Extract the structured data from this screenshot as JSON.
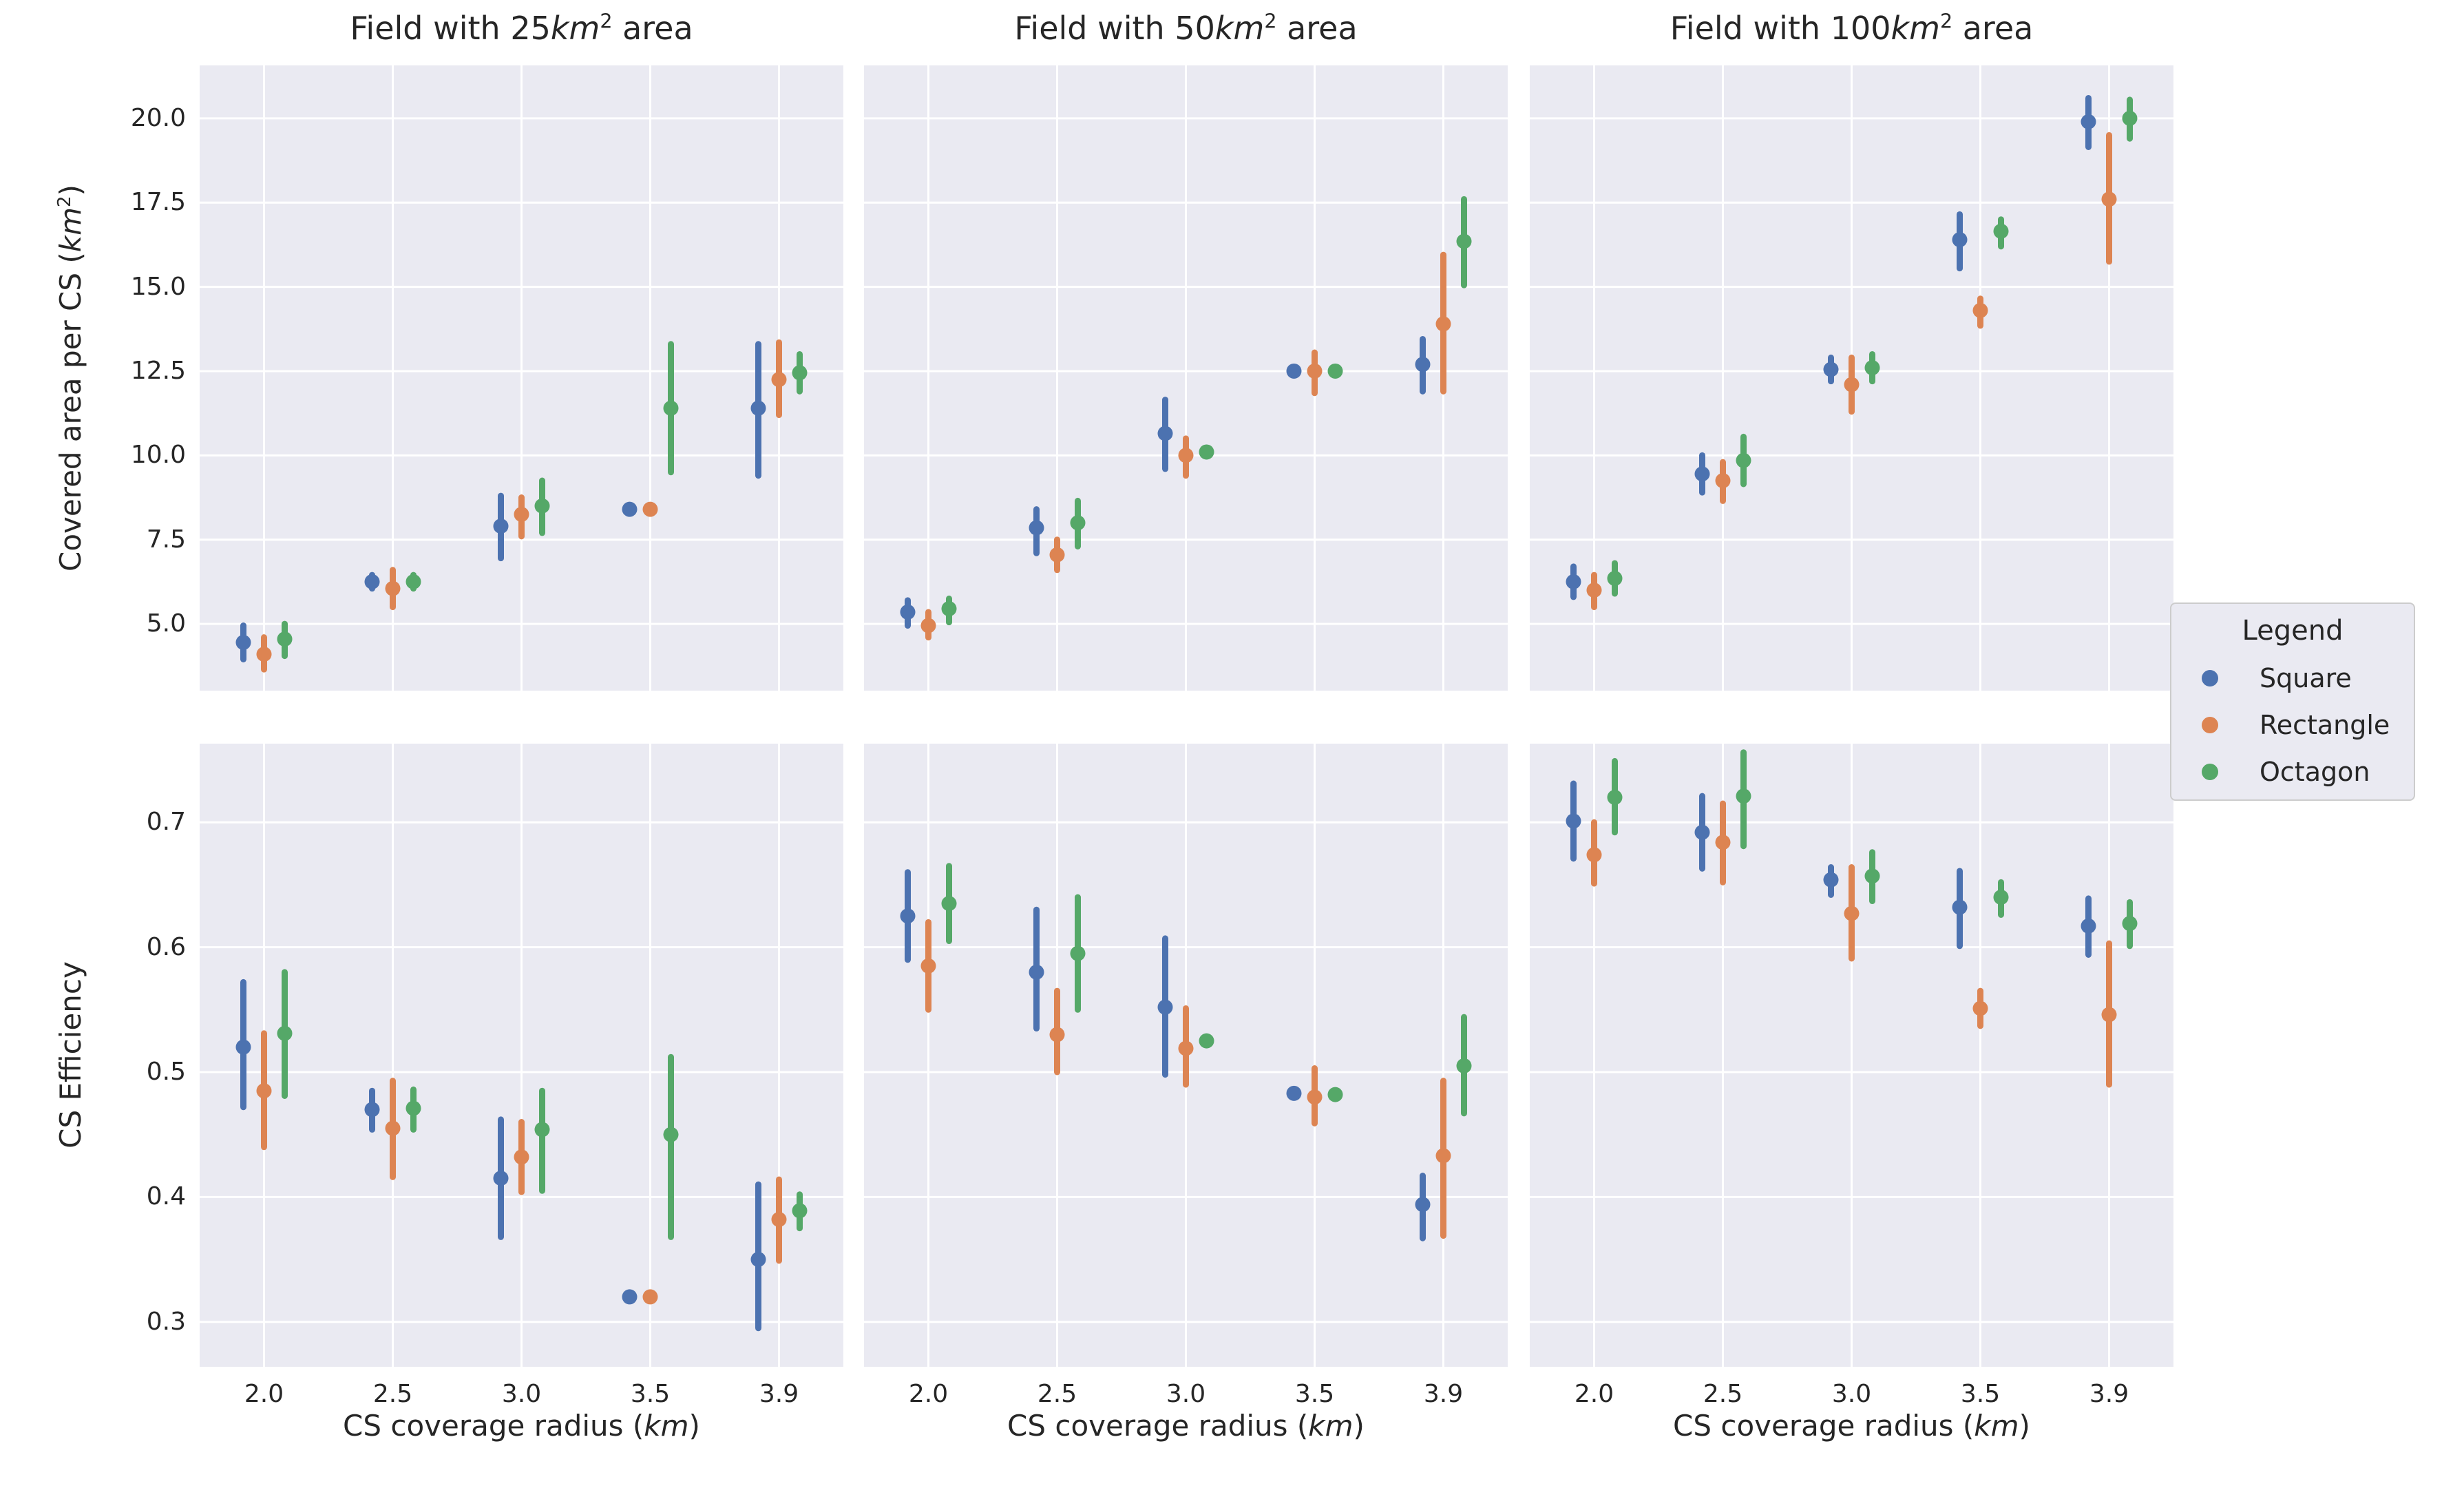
{
  "figure": {
    "background": "#ffffff",
    "axes_background": "#eaeaf2",
    "grid_color": "#ffffff",
    "text_color": "#262626"
  },
  "legend": {
    "title": "Legend",
    "entries": [
      {
        "label": "Square",
        "color": "#4c72b0"
      },
      {
        "label": "Rectangle",
        "color": "#dd8452"
      },
      {
        "label": "Octagon",
        "color": "#55a868"
      }
    ]
  },
  "chart_data": {
    "type": "scatter",
    "subtype": "pointplot-with-error-bars",
    "x_categories": [
      "2.0",
      "2.5",
      "3.0",
      "3.5",
      "3.9"
    ],
    "xlabel": {
      "prefix": "CS coverage radius (",
      "italic": "km",
      "suffix": ")"
    },
    "series_names": [
      "Square",
      "Rectangle",
      "Octagon"
    ],
    "series_colors": [
      "#4c72b0",
      "#dd8452",
      "#55a868"
    ],
    "grid": true,
    "legend_position": "right",
    "rows": [
      {
        "name": "covered-area",
        "ylabel": {
          "prefix": "Covered area per CS (",
          "italic": "km",
          "sup": "2",
          "suffix": ")"
        },
        "yticks": [
          "20.0",
          "17.5",
          "15.0",
          "12.5",
          "10.0",
          "7.5",
          "5.0"
        ],
        "ylim": [
          3.02,
          21.57
        ],
        "plots": [
          {
            "title": {
              "prefix": "Field with 25",
              "italic": "km",
              "sup": "2",
              "suffix": " area"
            },
            "series": [
              {
                "name": "Square",
                "values": [
                  4.45,
                  6.25,
                  7.9,
                  8.4,
                  11.4
                ],
                "err_lo": [
                  3.95,
                  6.05,
                  6.95,
                  8.4,
                  9.4
                ],
                "err_hi": [
                  4.95,
                  6.45,
                  8.8,
                  8.4,
                  13.3
                ]
              },
              {
                "name": "Rectangle",
                "values": [
                  4.1,
                  6.05,
                  8.25,
                  8.4,
                  12.25
                ],
                "err_lo": [
                  3.65,
                  5.5,
                  7.6,
                  8.4,
                  11.2
                ],
                "err_hi": [
                  4.6,
                  6.6,
                  8.75,
                  8.4,
                  13.35
                ]
              },
              {
                "name": "Octagon",
                "values": [
                  4.55,
                  6.25,
                  8.5,
                  11.4,
                  12.45
                ],
                "err_lo": [
                  4.05,
                  6.05,
                  7.7,
                  9.5,
                  11.9
                ],
                "err_hi": [
                  5.0,
                  6.45,
                  9.25,
                  13.3,
                  13.0
                ]
              }
            ]
          },
          {
            "title": {
              "prefix": "Field with 50",
              "italic": "km",
              "sup": "2",
              "suffix": " area"
            },
            "series": [
              {
                "name": "Square",
                "values": [
                  5.35,
                  7.85,
                  10.65,
                  12.5,
                  12.7
                ],
                "err_lo": [
                  4.95,
                  7.1,
                  9.6,
                  12.5,
                  11.9
                ],
                "err_hi": [
                  5.7,
                  8.4,
                  11.65,
                  12.5,
                  13.45
                ]
              },
              {
                "name": "Rectangle",
                "values": [
                  4.95,
                  7.05,
                  10.0,
                  12.5,
                  13.9
                ],
                "err_lo": [
                  4.6,
                  6.6,
                  9.4,
                  11.85,
                  11.9
                ],
                "err_hi": [
                  5.35,
                  7.5,
                  10.5,
                  13.05,
                  15.95
                ]
              },
              {
                "name": "Octagon",
                "values": [
                  5.45,
                  8.0,
                  10.1,
                  12.5,
                  16.35
                ],
                "err_lo": [
                  5.05,
                  7.3,
                  10.1,
                  12.5,
                  15.05
                ],
                "err_hi": [
                  5.75,
                  8.65,
                  10.1,
                  12.5,
                  17.6
                ]
              }
            ]
          },
          {
            "title": {
              "prefix": "Field with 100",
              "italic": "km",
              "sup": "2",
              "suffix": " area"
            },
            "series": [
              {
                "name": "Square",
                "values": [
                  6.25,
                  9.45,
                  12.55,
                  16.4,
                  19.9
                ],
                "err_lo": [
                  5.8,
                  8.9,
                  12.2,
                  15.55,
                  19.15
                ],
                "err_hi": [
                  6.7,
                  10.0,
                  12.9,
                  17.15,
                  20.6
                ]
              },
              {
                "name": "Rectangle",
                "values": [
                  6.0,
                  9.25,
                  12.1,
                  14.3,
                  17.6
                ],
                "err_lo": [
                  5.5,
                  8.65,
                  11.3,
                  13.85,
                  15.75
                ],
                "err_hi": [
                  6.45,
                  9.8,
                  12.9,
                  14.65,
                  19.5
                ]
              },
              {
                "name": "Octagon",
                "values": [
                  6.35,
                  9.85,
                  12.6,
                  16.65,
                  20.0
                ],
                "err_lo": [
                  5.9,
                  9.15,
                  12.2,
                  16.2,
                  19.4
                ],
                "err_hi": [
                  6.8,
                  10.55,
                  13.0,
                  17.0,
                  20.55
                ]
              }
            ]
          }
        ]
      },
      {
        "name": "cs-efficiency",
        "ylabel": {
          "text": "CS Efficiency"
        },
        "yticks": [
          "0.7",
          "0.6",
          "0.5",
          "0.4",
          "0.3"
        ],
        "ylim": [
          0.264,
          0.763
        ],
        "plots": [
          {
            "series": [
              {
                "name": "Square",
                "values": [
                  0.52,
                  0.47,
                  0.415,
                  0.32,
                  0.35
                ],
                "err_lo": [
                  0.472,
                  0.454,
                  0.368,
                  0.32,
                  0.295
                ],
                "err_hi": [
                  0.572,
                  0.485,
                  0.462,
                  0.32,
                  0.41
                ]
              },
              {
                "name": "Rectangle",
                "values": [
                  0.485,
                  0.455,
                  0.432,
                  0.32,
                  0.382
                ],
                "err_lo": [
                  0.44,
                  0.416,
                  0.404,
                  0.32,
                  0.349
                ],
                "err_hi": [
                  0.531,
                  0.493,
                  0.46,
                  0.32,
                  0.414
                ]
              },
              {
                "name": "Octagon",
                "values": [
                  0.531,
                  0.471,
                  0.454,
                  0.45,
                  0.389
                ],
                "err_lo": [
                  0.481,
                  0.454,
                  0.405,
                  0.368,
                  0.375
                ],
                "err_hi": [
                  0.58,
                  0.486,
                  0.485,
                  0.512,
                  0.402
                ]
              }
            ]
          },
          {
            "series": [
              {
                "name": "Square",
                "values": [
                  0.625,
                  0.58,
                  0.552,
                  0.483,
                  0.394
                ],
                "err_lo": [
                  0.59,
                  0.535,
                  0.498,
                  0.483,
                  0.367
                ],
                "err_hi": [
                  0.66,
                  0.63,
                  0.607,
                  0.483,
                  0.417
                ]
              },
              {
                "name": "Rectangle",
                "values": [
                  0.585,
                  0.53,
                  0.519,
                  0.48,
                  0.433
                ],
                "err_lo": [
                  0.55,
                  0.5,
                  0.49,
                  0.459,
                  0.369
                ],
                "err_hi": [
                  0.62,
                  0.565,
                  0.551,
                  0.503,
                  0.493
                ]
              },
              {
                "name": "Octagon",
                "values": [
                  0.635,
                  0.595,
                  0.525,
                  0.482,
                  0.505
                ],
                "err_lo": [
                  0.605,
                  0.55,
                  0.525,
                  0.482,
                  0.467
                ],
                "err_hi": [
                  0.665,
                  0.64,
                  0.525,
                  0.482,
                  0.544
                ]
              }
            ]
          },
          {
            "series": [
              {
                "name": "Square",
                "values": [
                  0.701,
                  0.692,
                  0.654,
                  0.632,
                  0.617
                ],
                "err_lo": [
                  0.671,
                  0.663,
                  0.642,
                  0.601,
                  0.594
                ],
                "err_hi": [
                  0.731,
                  0.721,
                  0.664,
                  0.661,
                  0.639
                ]
              },
              {
                "name": "Rectangle",
                "values": [
                  0.674,
                  0.684,
                  0.627,
                  0.551,
                  0.546
                ],
                "err_lo": [
                  0.651,
                  0.652,
                  0.591,
                  0.537,
                  0.49
                ],
                "err_hi": [
                  0.7,
                  0.715,
                  0.664,
                  0.565,
                  0.603
                ]
              },
              {
                "name": "Octagon",
                "values": [
                  0.72,
                  0.721,
                  0.657,
                  0.64,
                  0.619
                ],
                "err_lo": [
                  0.692,
                  0.681,
                  0.637,
                  0.626,
                  0.601
                ],
                "err_hi": [
                  0.749,
                  0.756,
                  0.676,
                  0.652,
                  0.636
                ]
              }
            ]
          }
        ]
      }
    ]
  }
}
